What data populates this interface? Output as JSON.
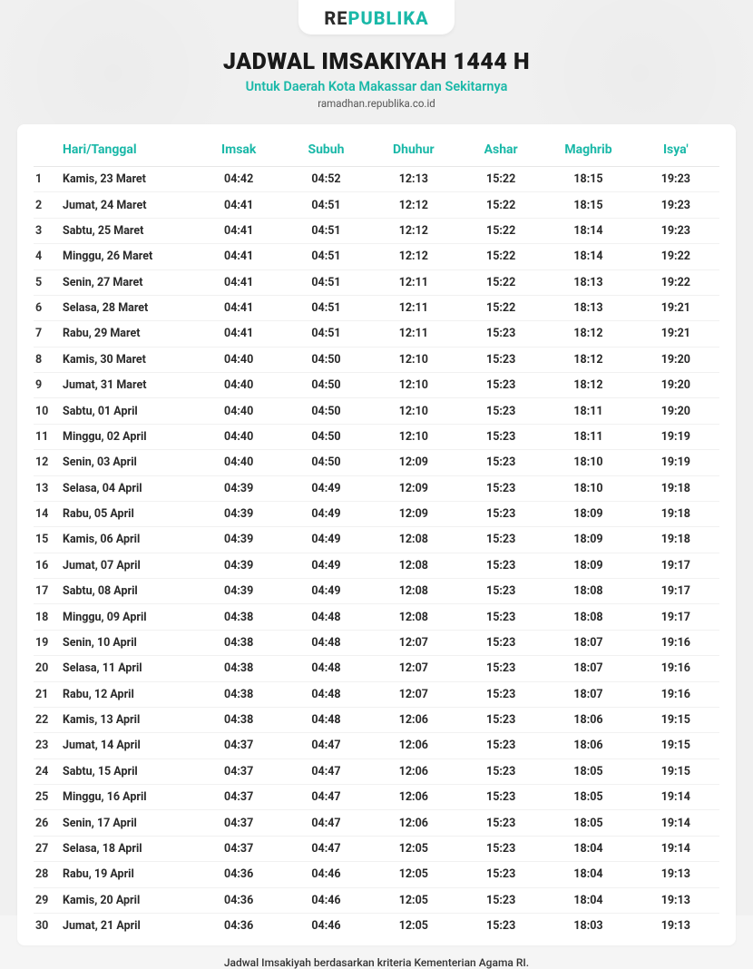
{
  "brand": {
    "pre": "RE",
    "accent": "PUBLIKA"
  },
  "header": {
    "title": "JADWAL IMSAKIYAH 1444 H",
    "subtitle": "Untuk Daerah Kota Makassar dan Sekitarnya",
    "url": "ramadhan.republika.co.id"
  },
  "colors": {
    "accent": "#1ab8a8",
    "page_bg": "#f0f0f0",
    "card_bg": "#ffffff",
    "text": "#2a2a2a",
    "divider": "#f1f1f1",
    "header_divider": "#e7e7e7"
  },
  "typography": {
    "title_fontsize": 25,
    "title_weight": 900,
    "subtitle_fontsize": 14.5,
    "header_fontsize": 14,
    "cell_fontsize": 12.5,
    "cell_weight": 700
  },
  "table": {
    "columns": [
      {
        "key": "num",
        "label": "",
        "width": 28,
        "align": "left"
      },
      {
        "key": "date",
        "label": "Hari/Tanggal",
        "width": 150,
        "align": "left"
      },
      {
        "key": "imsak",
        "label": "Imsak",
        "align": "center"
      },
      {
        "key": "subuh",
        "label": "Subuh",
        "align": "center"
      },
      {
        "key": "dhuhur",
        "label": "Dhuhur",
        "align": "center"
      },
      {
        "key": "ashar",
        "label": "Ashar",
        "align": "center"
      },
      {
        "key": "maghrib",
        "label": "Maghrib",
        "align": "center"
      },
      {
        "key": "isya",
        "label": "Isya'",
        "align": "center"
      }
    ],
    "rows": [
      {
        "num": "1",
        "date": "Kamis, 23 Maret",
        "imsak": "04:42",
        "subuh": "04:52",
        "dhuhur": "12:13",
        "ashar": "15:22",
        "maghrib": "18:15",
        "isya": "19:23"
      },
      {
        "num": "2",
        "date": "Jumat, 24 Maret",
        "imsak": "04:41",
        "subuh": "04:51",
        "dhuhur": "12:12",
        "ashar": "15:22",
        "maghrib": "18:15",
        "isya": "19:23"
      },
      {
        "num": "3",
        "date": "Sabtu, 25 Maret",
        "imsak": "04:41",
        "subuh": "04:51",
        "dhuhur": "12:12",
        "ashar": "15:22",
        "maghrib": "18:14",
        "isya": "19:23"
      },
      {
        "num": "4",
        "date": "Minggu, 26 Maret",
        "imsak": "04:41",
        "subuh": "04:51",
        "dhuhur": "12:12",
        "ashar": "15:22",
        "maghrib": "18:14",
        "isya": "19:22"
      },
      {
        "num": "5",
        "date": "Senin, 27 Maret",
        "imsak": "04:41",
        "subuh": "04:51",
        "dhuhur": "12:11",
        "ashar": "15:22",
        "maghrib": "18:13",
        "isya": "19:22"
      },
      {
        "num": "6",
        "date": "Selasa, 28 Maret",
        "imsak": "04:41",
        "subuh": "04:51",
        "dhuhur": "12:11",
        "ashar": "15:22",
        "maghrib": "18:13",
        "isya": "19:21"
      },
      {
        "num": "7",
        "date": "Rabu, 29 Maret",
        "imsak": "04:41",
        "subuh": "04:51",
        "dhuhur": "12:11",
        "ashar": "15:23",
        "maghrib": "18:12",
        "isya": "19:21"
      },
      {
        "num": "8",
        "date": "Kamis, 30 Maret",
        "imsak": "04:40",
        "subuh": "04:50",
        "dhuhur": "12:10",
        "ashar": "15:23",
        "maghrib": "18:12",
        "isya": "19:20"
      },
      {
        "num": "9",
        "date": "Jumat, 31 Maret",
        "imsak": "04:40",
        "subuh": "04:50",
        "dhuhur": "12:10",
        "ashar": "15:23",
        "maghrib": "18:12",
        "isya": "19:20"
      },
      {
        "num": "10",
        "date": "Sabtu, 01 April",
        "imsak": "04:40",
        "subuh": "04:50",
        "dhuhur": "12:10",
        "ashar": "15:23",
        "maghrib": "18:11",
        "isya": "19:20"
      },
      {
        "num": "11",
        "date": "Minggu, 02 April",
        "imsak": "04:40",
        "subuh": "04:50",
        "dhuhur": "12:10",
        "ashar": "15:23",
        "maghrib": "18:11",
        "isya": "19:19"
      },
      {
        "num": "12",
        "date": "Senin, 03 April",
        "imsak": "04:40",
        "subuh": "04:50",
        "dhuhur": "12:09",
        "ashar": "15:23",
        "maghrib": "18:10",
        "isya": "19:19"
      },
      {
        "num": "13",
        "date": "Selasa, 04 April",
        "imsak": "04:39",
        "subuh": "04:49",
        "dhuhur": "12:09",
        "ashar": "15:23",
        "maghrib": "18:10",
        "isya": "19:18"
      },
      {
        "num": "14",
        "date": "Rabu, 05 April",
        "imsak": "04:39",
        "subuh": "04:49",
        "dhuhur": "12:09",
        "ashar": "15:23",
        "maghrib": "18:09",
        "isya": "19:18"
      },
      {
        "num": "15",
        "date": "Kamis, 06 April",
        "imsak": "04:39",
        "subuh": "04:49",
        "dhuhur": "12:08",
        "ashar": "15:23",
        "maghrib": "18:09",
        "isya": "19:18"
      },
      {
        "num": "16",
        "date": "Jumat, 07 April",
        "imsak": "04:39",
        "subuh": "04:49",
        "dhuhur": "12:08",
        "ashar": "15:23",
        "maghrib": "18:09",
        "isya": "19:17"
      },
      {
        "num": "17",
        "date": "Sabtu, 08 April",
        "imsak": "04:39",
        "subuh": "04:49",
        "dhuhur": "12:08",
        "ashar": "15:23",
        "maghrib": "18:08",
        "isya": "19:17"
      },
      {
        "num": "18",
        "date": "Minggu, 09 April",
        "imsak": "04:38",
        "subuh": "04:48",
        "dhuhur": "12:08",
        "ashar": "15:23",
        "maghrib": "18:08",
        "isya": "19:17"
      },
      {
        "num": "19",
        "date": "Senin, 10 April",
        "imsak": "04:38",
        "subuh": "04:48",
        "dhuhur": "12:07",
        "ashar": "15:23",
        "maghrib": "18:07",
        "isya": "19:16"
      },
      {
        "num": "20",
        "date": "Selasa, 11 April",
        "imsak": "04:38",
        "subuh": "04:48",
        "dhuhur": "12:07",
        "ashar": "15:23",
        "maghrib": "18:07",
        "isya": "19:16"
      },
      {
        "num": "21",
        "date": "Rabu, 12 April",
        "imsak": "04:38",
        "subuh": "04:48",
        "dhuhur": "12:07",
        "ashar": "15:23",
        "maghrib": "18:07",
        "isya": "19:16"
      },
      {
        "num": "22",
        "date": "Kamis, 13 April",
        "imsak": "04:38",
        "subuh": "04:48",
        "dhuhur": "12:06",
        "ashar": "15:23",
        "maghrib": "18:06",
        "isya": "19:15"
      },
      {
        "num": "23",
        "date": "Jumat, 14 April",
        "imsak": "04:37",
        "subuh": "04:47",
        "dhuhur": "12:06",
        "ashar": "15:23",
        "maghrib": "18:06",
        "isya": "19:15"
      },
      {
        "num": "24",
        "date": "Sabtu, 15 April",
        "imsak": "04:37",
        "subuh": "04:47",
        "dhuhur": "12:06",
        "ashar": "15:23",
        "maghrib": "18:05",
        "isya": "19:15"
      },
      {
        "num": "25",
        "date": "Minggu, 16 April",
        "imsak": "04:37",
        "subuh": "04:47",
        "dhuhur": "12:06",
        "ashar": "15:23",
        "maghrib": "18:05",
        "isya": "19:14"
      },
      {
        "num": "26",
        "date": "Senin, 17 April",
        "imsak": "04:37",
        "subuh": "04:47",
        "dhuhur": "12:06",
        "ashar": "15:23",
        "maghrib": "18:05",
        "isya": "19:14"
      },
      {
        "num": "27",
        "date": "Selasa, 18 April",
        "imsak": "04:37",
        "subuh": "04:47",
        "dhuhur": "12:05",
        "ashar": "15:23",
        "maghrib": "18:04",
        "isya": "19:14"
      },
      {
        "num": "28",
        "date": "Rabu, 19 April",
        "imsak": "04:36",
        "subuh": "04:46",
        "dhuhur": "12:05",
        "ashar": "15:23",
        "maghrib": "18:04",
        "isya": "19:13"
      },
      {
        "num": "29",
        "date": "Kamis, 20 April",
        "imsak": "04:36",
        "subuh": "04:46",
        "dhuhur": "12:05",
        "ashar": "15:23",
        "maghrib": "18:04",
        "isya": "19:13"
      },
      {
        "num": "30",
        "date": "Jumat, 21 April",
        "imsak": "04:36",
        "subuh": "04:46",
        "dhuhur": "12:05",
        "ashar": "15:23",
        "maghrib": "18:03",
        "isya": "19:13"
      }
    ]
  },
  "footer": {
    "note": "Jadwal Imsakiyah berdasarkan kriteria Kementerian Agama RI."
  }
}
